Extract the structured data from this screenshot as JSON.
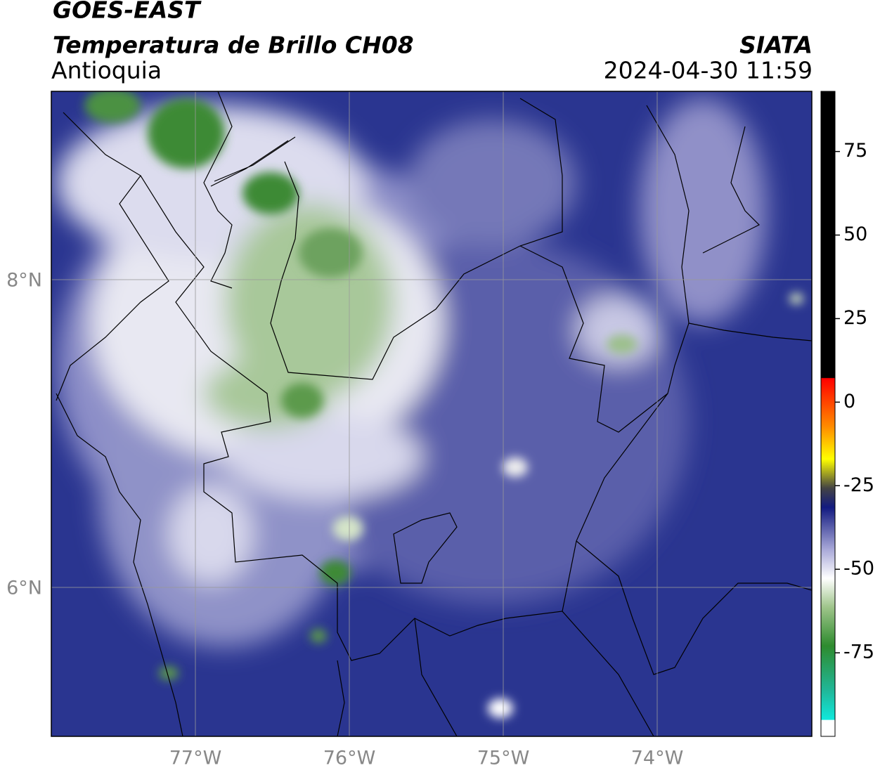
{
  "header": {
    "satellite": "GOES-EAST",
    "product": "Temperatura de Brillo CH08",
    "region": "Antioquia",
    "source": "SIATA",
    "datetime": "2024-04-30 11:59"
  },
  "map": {
    "lat_labels": [
      "8°N",
      "6°N"
    ],
    "lon_labels": [
      "77°W",
      "76°W",
      "75°W",
      "74°W"
    ]
  },
  "colorbar": {
    "range": [
      -100,
      93
    ],
    "ticks": [
      75,
      50,
      25,
      0,
      -25,
      -50,
      -75
    ]
  }
}
